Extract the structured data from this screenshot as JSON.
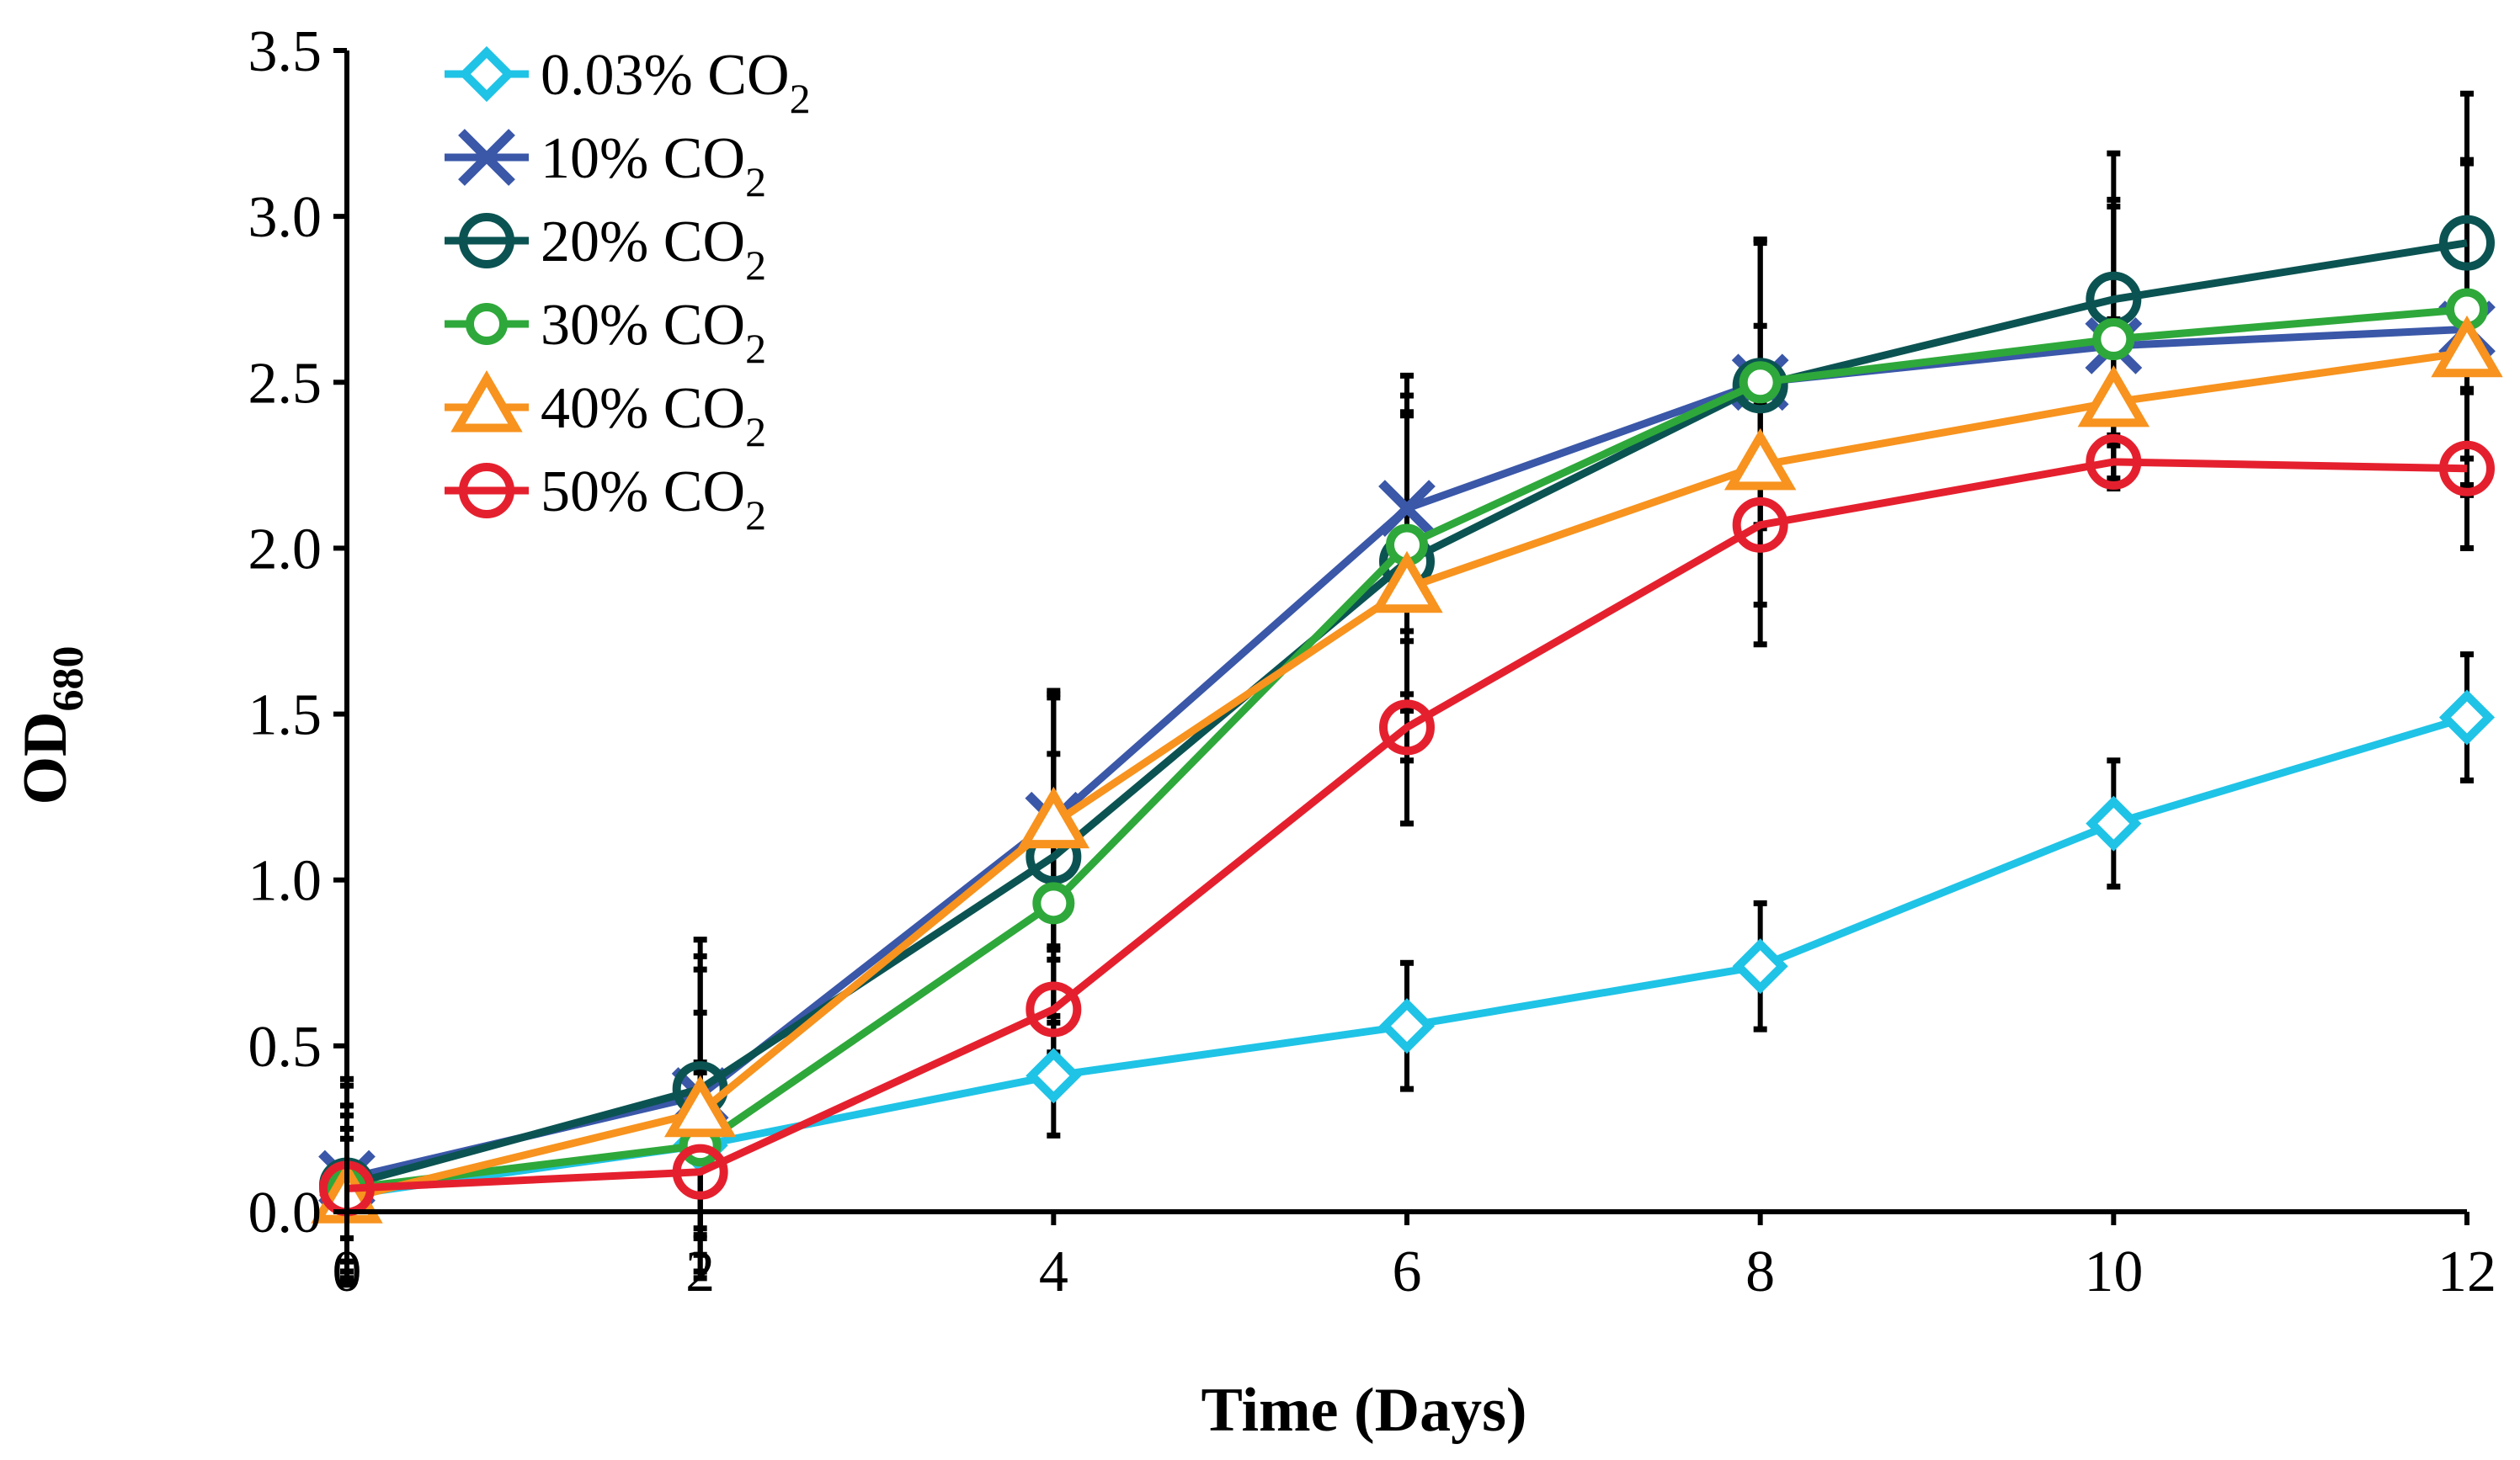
{
  "chart_data": {
    "type": "line",
    "title": "",
    "xlabel": "Time (Days)",
    "ylabel": {
      "base": "OD",
      "subscript": "680"
    },
    "xlim": [
      0,
      12
    ],
    "ylim": [
      0,
      3.5
    ],
    "x_ticks": [
      "0",
      "2",
      "4",
      "6",
      "8",
      "10",
      "12"
    ],
    "y_ticks": [
      "0.0",
      "0.5",
      "1.0",
      "1.5",
      "2.0",
      "2.5",
      "3.0",
      "3.5"
    ],
    "grid": false,
    "legend_position": "top-left",
    "x": [
      0,
      2,
      4,
      6,
      8,
      10,
      12
    ],
    "series": [
      {
        "name": "0.03% CO2",
        "label_main": "0.03% CO",
        "label_sub": "2",
        "color": "#1fc3e6",
        "marker": "diamond",
        "values": [
          0.05,
          0.2,
          0.41,
          0.56,
          0.74,
          1.17,
          1.49
        ],
        "errors": [
          0.2,
          0.25,
          0.18,
          0.19,
          0.19,
          0.19,
          0.19
        ]
      },
      {
        "name": "10% CO2",
        "label_main": "10% CO",
        "label_sub": "2",
        "color": "#3a57a8",
        "marker": "x",
        "values": [
          0.1,
          0.35,
          1.18,
          2.12,
          2.5,
          2.61,
          2.66
        ],
        "errors": [
          0.3,
          0.42,
          0.38,
          0.4,
          0.43,
          0.42,
          0.5
        ]
      },
      {
        "name": "20% CO2",
        "label_main": "20% CO",
        "label_sub": "2",
        "color": "#0b5352",
        "marker": "circle",
        "values": [
          0.08,
          0.37,
          1.07,
          1.96,
          2.49,
          2.75,
          2.92
        ],
        "errors": [
          0.3,
          0.45,
          0.5,
          0.45,
          0.43,
          0.44,
          0.45
        ]
      },
      {
        "name": "30% CO2",
        "label_main": "30% CO",
        "label_sub": "2",
        "color": "#2ea83a",
        "marker": "small-circle",
        "values": [
          0.07,
          0.2,
          0.93,
          2.01,
          2.5,
          2.63,
          2.72
        ],
        "errors": [
          0.25,
          0.4,
          0.45,
          0.45,
          0.43,
          0.42,
          0.45
        ]
      },
      {
        "name": "40% CO2",
        "label_main": "40% CO",
        "label_sub": "2",
        "color": "#f7931e",
        "marker": "triangle",
        "values": [
          0.04,
          0.3,
          1.17,
          1.88,
          2.25,
          2.44,
          2.59
        ],
        "errors": [
          0.25,
          0.43,
          0.38,
          0.52,
          0.42,
          0.25,
          0.4
        ]
      },
      {
        "name": "50% CO2",
        "label_main": "50% CO",
        "label_sub": "2",
        "color": "#e5202e",
        "marker": "circle",
        "values": [
          0.07,
          0.12,
          0.61,
          1.46,
          2.07,
          2.26,
          2.24
        ],
        "errors": [
          0.15,
          0.3,
          0.15,
          0.29,
          0.36,
          0.08,
          0.24
        ]
      }
    ]
  }
}
